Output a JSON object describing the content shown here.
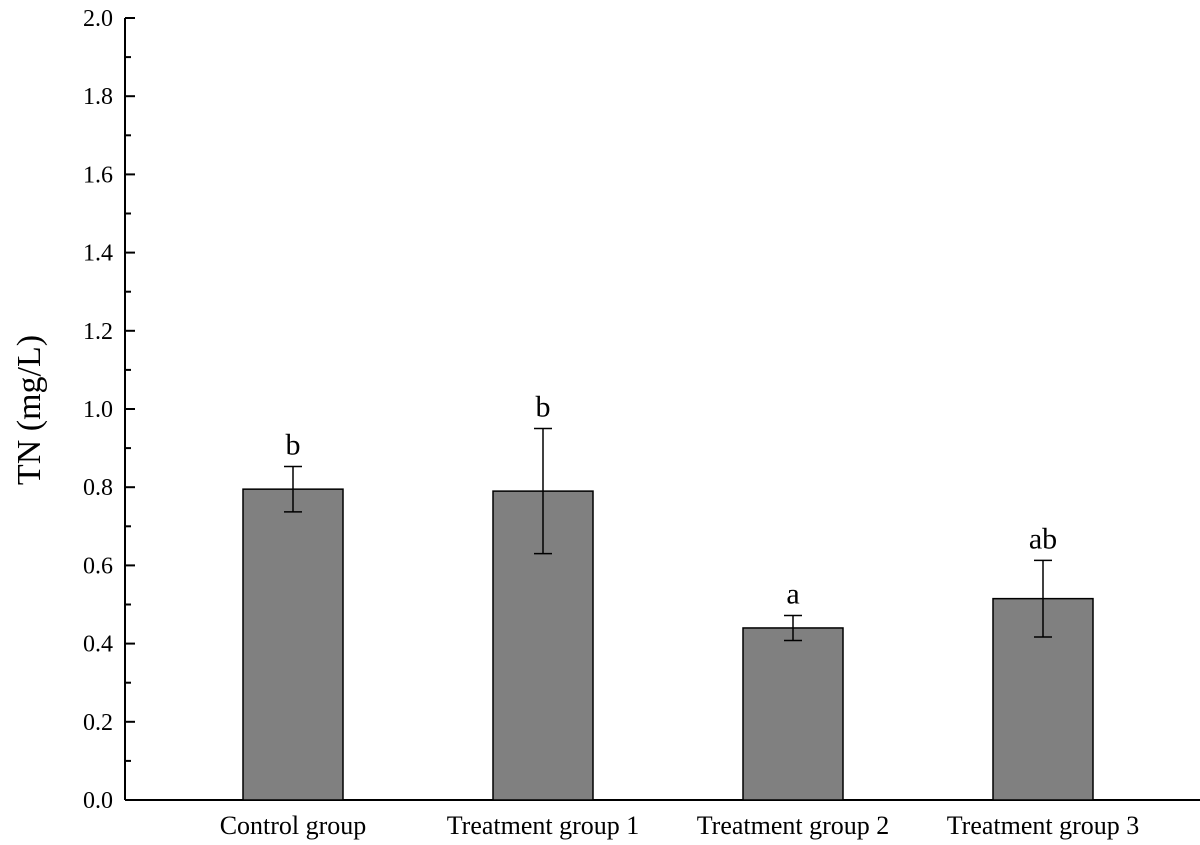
{
  "chart_data": {
    "type": "bar",
    "title": "",
    "xlabel": "",
    "ylabel": "TN (mg/L)",
    "ylim": [
      0,
      2.0
    ],
    "yticks": [
      "0.0",
      "0.2",
      "0.4",
      "0.6",
      "0.8",
      "1.0",
      "1.2",
      "1.4",
      "1.6",
      "1.8",
      "2.0"
    ],
    "ytick_values": [
      0.0,
      0.2,
      0.4,
      0.6,
      0.8,
      1.0,
      1.2,
      1.4,
      1.6,
      1.8,
      2.0
    ],
    "categories": [
      "Control group",
      "Treatment group 1",
      "Treatment group 2",
      "Treatment group 3"
    ],
    "values": [
      0.795,
      0.79,
      0.44,
      0.515
    ],
    "errors": [
      0.058,
      0.16,
      0.032,
      0.098
    ],
    "significance_labels": [
      "b",
      "b",
      "a",
      "ab"
    ],
    "bar_color": "#808080",
    "grid": false,
    "legend": "none"
  }
}
